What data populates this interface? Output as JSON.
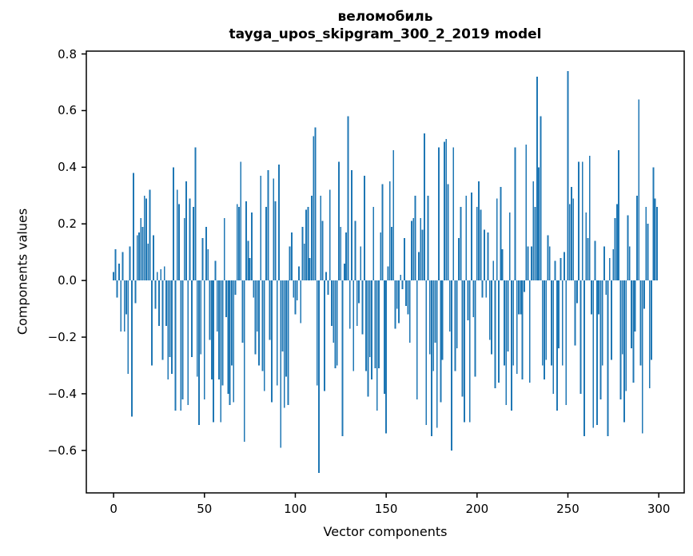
{
  "title": {
    "line1": "веломобиль",
    "line2": "tayga_upos_skipgram_300_2_2019 model"
  },
  "axes": {
    "xlabel": "Vector components",
    "ylabel": "Components values"
  },
  "chart_data": {
    "type": "bar",
    "title": "веломобиль\ntayga_upos_skipgram_300_2_2019 model",
    "xlabel": "Vector components",
    "ylabel": "Components values",
    "bar_color": "#1f77b4",
    "axis_color": "#000000",
    "bar_width": 0.8,
    "x_start": 0,
    "xlim": [
      -15,
      314
    ],
    "ylim": [
      -0.75,
      0.81
    ],
    "grid": false,
    "legend": null,
    "xticks": {
      "values": [
        0,
        50,
        100,
        150,
        200,
        250,
        300
      ],
      "labels": [
        "0",
        "50",
        "100",
        "150",
        "200",
        "250",
        "300"
      ]
    },
    "yticks": {
      "values": [
        0.8,
        0.6,
        0.4,
        0.2,
        0.0,
        -0.2,
        -0.4,
        -0.6
      ],
      "labels": [
        "0.8",
        "0.6",
        "0.4",
        "0.2",
        "0.0",
        "−0.2",
        "−0.4",
        "−0.6"
      ]
    },
    "values": [
      0.03,
      0.11,
      -0.06,
      0.06,
      -0.18,
      0.1,
      -0.18,
      -0.12,
      -0.33,
      0.12,
      -0.48,
      0.38,
      -0.08,
      0.16,
      0.17,
      0.22,
      0.19,
      0.3,
      0.29,
      0.13,
      0.32,
      -0.3,
      0.16,
      -0.1,
      0.03,
      -0.16,
      0.04,
      -0.28,
      0.05,
      -0.16,
      -0.35,
      -0.27,
      -0.33,
      0.4,
      -0.46,
      0.32,
      0.27,
      -0.46,
      -0.42,
      0.22,
      0.35,
      -0.44,
      0.29,
      -0.27,
      0.26,
      0.47,
      -0.34,
      -0.51,
      -0.26,
      0.15,
      -0.42,
      0.19,
      0.11,
      -0.21,
      -0.35,
      -0.5,
      0.07,
      -0.18,
      -0.35,
      -0.5,
      -0.37,
      0.22,
      -0.13,
      -0.4,
      -0.44,
      -0.3,
      -0.43,
      -0.05,
      0.27,
      0.26,
      0.42,
      -0.22,
      -0.57,
      0.28,
      0.14,
      0.08,
      0.24,
      -0.06,
      -0.26,
      -0.18,
      -0.3,
      0.37,
      -0.32,
      -0.39,
      0.26,
      0.39,
      -0.21,
      -0.43,
      0.36,
      0.28,
      -0.37,
      0.41,
      -0.59,
      -0.25,
      -0.45,
      -0.34,
      -0.44,
      0.12,
      0.17,
      -0.06,
      -0.12,
      -0.07,
      0.05,
      -0.15,
      0.19,
      0.13,
      0.25,
      0.26,
      0.08,
      0.3,
      0.51,
      0.54,
      -0.37,
      -0.68,
      0.3,
      0.21,
      -0.39,
      0.03,
      -0.05,
      0.32,
      -0.16,
      -0.22,
      -0.31,
      -0.3,
      0.42,
      0.19,
      -0.55,
      0.06,
      0.17,
      0.58,
      -0.17,
      0.39,
      -0.32,
      0.21,
      -0.16,
      -0.08,
      0.12,
      -0.19,
      0.37,
      -0.32,
      -0.41,
      -0.27,
      -0.35,
      0.26,
      -0.31,
      -0.46,
      -0.31,
      0.17,
      0.34,
      -0.4,
      -0.54,
      0.05,
      0.35,
      0.19,
      0.46,
      -0.17,
      -0.1,
      -0.15,
      0.02,
      -0.03,
      0.15,
      -0.09,
      -0.12,
      -0.22,
      0.21,
      0.22,
      0.3,
      -0.42,
      0.1,
      0.22,
      0.18,
      0.52,
      -0.51,
      0.3,
      -0.26,
      -0.55,
      -0.32,
      -0.22,
      -0.52,
      0.47,
      -0.43,
      -0.28,
      0.49,
      0.5,
      0.34,
      -0.18,
      -0.6,
      0.47,
      -0.32,
      -0.24,
      0.15,
      0.26,
      -0.41,
      -0.5,
      0.3,
      -0.14,
      -0.5,
      0.31,
      -0.13,
      -0.34,
      0.26,
      0.35,
      0.25,
      -0.06,
      0.18,
      -0.06,
      0.17,
      -0.21,
      -0.26,
      0.07,
      -0.38,
      0.29,
      -0.36,
      0.33,
      0.11,
      -0.3,
      -0.44,
      -0.25,
      0.24,
      -0.46,
      -0.3,
      0.47,
      -0.33,
      -0.12,
      -0.12,
      -0.35,
      -0.04,
      0.48,
      0.12,
      -0.36,
      0.12,
      0.35,
      0.26,
      0.72,
      0.4,
      0.58,
      -0.3,
      -0.35,
      -0.28,
      0.16,
      0.12,
      -0.3,
      -0.4,
      0.07,
      -0.46,
      -0.24,
      0.08,
      -0.3,
      0.1,
      -0.44,
      0.74,
      0.27,
      0.33,
      0.29,
      -0.23,
      -0.08,
      0.42,
      -0.4,
      0.42,
      -0.55,
      0.24,
      0.15,
      0.44,
      -0.12,
      -0.52,
      0.14,
      -0.51,
      -0.12,
      -0.42,
      -0.3,
      0.12,
      -0.05,
      -0.55,
      0.08,
      -0.28,
      0.11,
      0.22,
      0.27,
      0.46,
      -0.42,
      -0.26,
      -0.5,
      -0.39,
      0.23,
      0.12,
      -0.24,
      -0.36,
      -0.18,
      0.3,
      0.64,
      -0.3,
      -0.54,
      -0.1,
      0.26,
      0.2,
      -0.38,
      -0.28,
      0.4,
      0.29,
      0.26
    ]
  }
}
